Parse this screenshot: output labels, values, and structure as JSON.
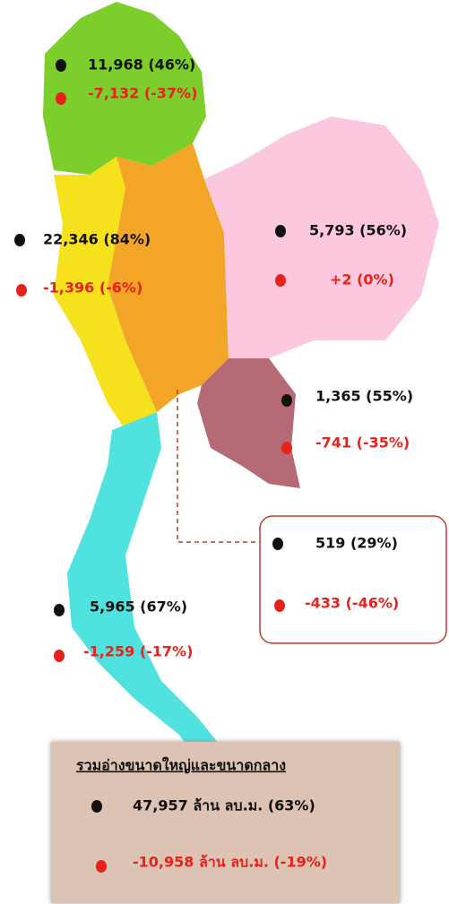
{
  "regions": [
    {
      "volume": "11,968 (46%)",
      "change": "-7,132 (-37%)"
    },
    {
      "volume": "22,346 (84%)",
      "change": "-1,396 (-6%)"
    },
    {
      "volume": "5,793 (56%)",
      "change": "+2 (0%)"
    },
    {
      "volume": "1,365 (55%)",
      "change": "-741 (-35%)"
    },
    {
      "volume": "519 (29%)",
      "change": "-433 (-46%)"
    },
    {
      "volume": "5,965 (67%)",
      "change": "-1,259 (-17%)"
    }
  ],
  "summary": {
    "title": "รวมอ่างขนาดใหญ่และขนาดกลาง",
    "volume": "47,957 ล้าน ลบ.ม. (63%)",
    "change": "-10,958 ล้าน ลบ.ม. (-19%)"
  }
}
